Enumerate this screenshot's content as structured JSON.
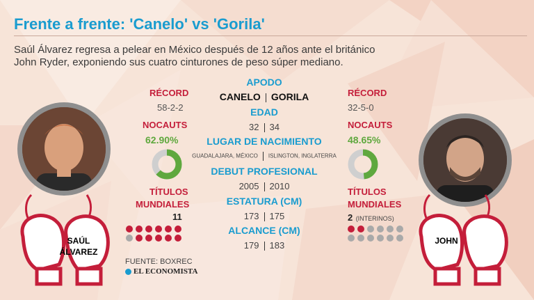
{
  "title": "Frente a frente: 'Canelo' vs 'Gorila'",
  "subtitle_lines": [
    "Saúl Álvarez regresa a pelear en México después de 12 años ante el británico",
    "John Ryder, exponiendo sus cuatro cinturones de peso súper mediano."
  ],
  "colors": {
    "title_blue": "#1a9ccf",
    "accent_red": "#c41e3a",
    "accent_green": "#5fa83e",
    "dot_grey": "#a9a9a9"
  },
  "left_fighter": {
    "record_label": "RÉCORD",
    "record": "58-2-2",
    "knockouts_label": "NOCAUTS",
    "knockout_pct": "62.90%",
    "knockout_value": 0.629,
    "titles_label_line1": "TÍTULOS",
    "titles_label_line2": "MUNDIALES",
    "titles": "11",
    "titles_dots": {
      "filled": 11,
      "total": 12
    },
    "glove_name_line1": "SAÚL",
    "glove_name_line2": "ÁLVAREZ",
    "photo_icon": "fighter-portrait-icon"
  },
  "right_fighter": {
    "record_label": "RÉCORD",
    "record": "32-5-0",
    "knockouts_label": "NOCAUTS",
    "knockout_pct": "48.65%",
    "knockout_value": 0.4865,
    "titles_label_line1": "TÍTULOS",
    "titles_label_line2": "MUNDIALES",
    "titles": "2",
    "titles_note": "(INTERINOS)",
    "titles_dots": {
      "filled": 2,
      "total": 12
    },
    "glove_name": "JOHN",
    "photo_icon": "fighter-portrait-icon"
  },
  "center": {
    "nickname_label": "APODO",
    "nickname_left": "CANELO",
    "nickname_right": "GORILA",
    "age_label": "EDAD",
    "age_left": "32",
    "age_right": "34",
    "birthplace_label": "LUGAR DE NACIMIENTO",
    "birthplace_left": "GUADALAJARA, MÉXICO",
    "birthplace_right": "ISLINGTON, INGLATERRA",
    "debut_label": "DEBUT PROFESIONAL",
    "debut_left": "2005",
    "debut_right": "2010",
    "height_label": "ESTATURA (CM)",
    "height_left": "173",
    "height_right": "175",
    "reach_label": "ALCANCE (CM)",
    "reach_left": "179",
    "reach_right": "183"
  },
  "source": "FUENTE: BOXREC",
  "brand": "EL ECONOMISTA"
}
